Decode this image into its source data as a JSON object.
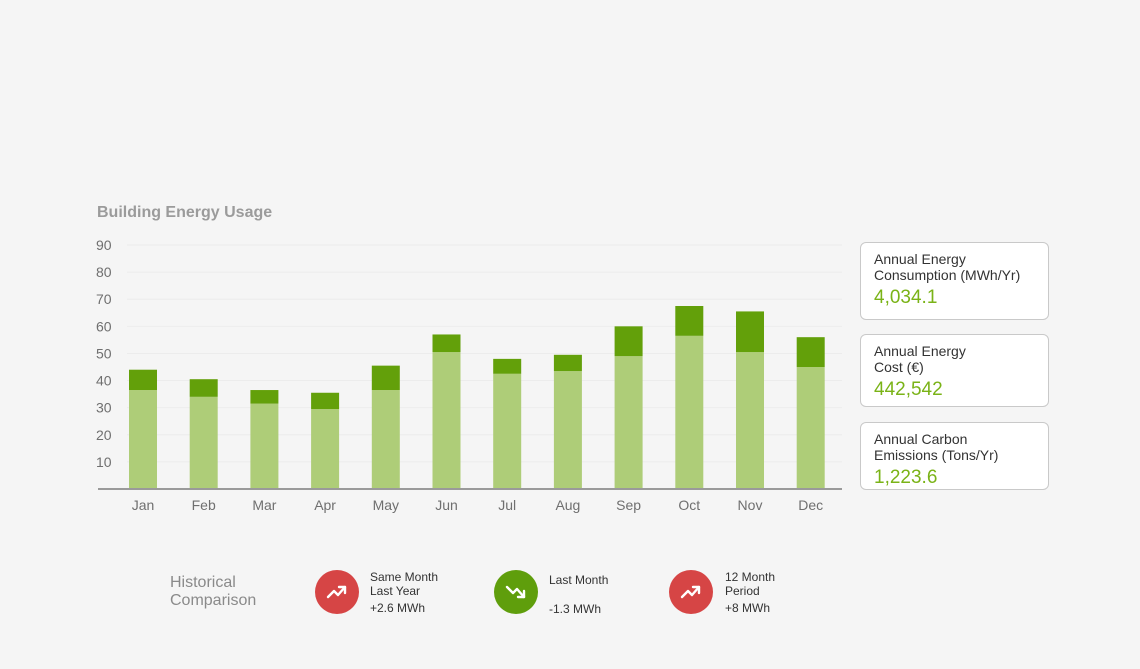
{
  "chart_data": {
    "type": "bar",
    "stacked": true,
    "title": "Building Energy Usage",
    "categories": [
      "Jan",
      "Feb",
      "Mar",
      "Apr",
      "May",
      "Jun",
      "Jul",
      "Aug",
      "Sep",
      "Oct",
      "Nov",
      "Dec"
    ],
    "series": [
      {
        "color": "#aecd78",
        "values": [
          36.5,
          34,
          31.5,
          29.5,
          36.5,
          50.5,
          42.5,
          43.5,
          49,
          56.5,
          50.5,
          45
        ]
      },
      {
        "color": "#63a00a",
        "values": [
          7.5,
          6.5,
          5,
          6,
          9,
          6.5,
          5.5,
          6,
          11,
          11,
          15,
          11
        ]
      }
    ],
    "yticks": [
      10,
      20,
      30,
      40,
      50,
      60,
      70,
      80,
      90
    ],
    "ylim": [
      0,
      90
    ],
    "grid": true
  },
  "stats": [
    {
      "label": "Annual Energy\nConsumption (MWh/Yr)",
      "value": "4,034.1"
    },
    {
      "label": "Annual Energy\nCost (€)",
      "value": "442,542"
    },
    {
      "label": "Annual Carbon\nEmissions (Tons/Yr)",
      "value": "1,223.6"
    }
  ],
  "historical": {
    "title": "Historical\nComparison",
    "items": [
      {
        "label": "Same Month\nLast Year",
        "value": "+2.6 MWh",
        "trend": "up",
        "color": "#d64545",
        "icon": "trend-up-icon"
      },
      {
        "label": "Last Month",
        "value": "-1.3 MWh",
        "trend": "down",
        "color": "#5f9e0c",
        "icon": "trend-down-icon"
      },
      {
        "label": "12 Month\nPeriod",
        "value": "+8 MWh",
        "trend": "up",
        "color": "#d64545",
        "icon": "trend-up-icon"
      }
    ]
  }
}
